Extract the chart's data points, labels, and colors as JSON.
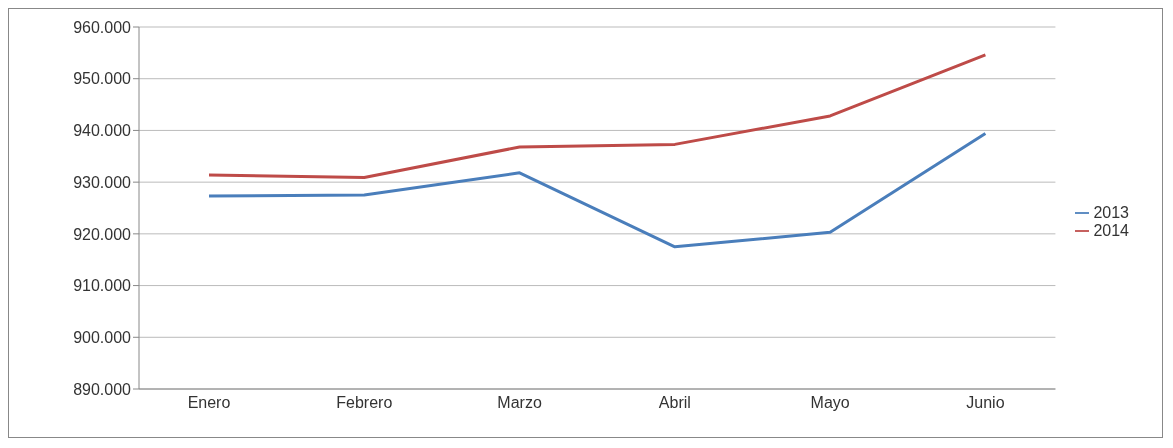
{
  "chart_data": {
    "type": "line",
    "categories": [
      "Enero",
      "Febrero",
      "Marzo",
      "Abril",
      "Mayo",
      "Junio"
    ],
    "series": [
      {
        "name": "2013",
        "color": "#4a7ebb",
        "values": [
          927300,
          927500,
          931800,
          917500,
          920300,
          939400
        ]
      },
      {
        "name": "2014",
        "color": "#be4b48",
        "values": [
          931400,
          930900,
          936800,
          937300,
          942800,
          954600
        ]
      }
    ],
    "ylim": [
      890000,
      960000
    ],
    "yticks": [
      {
        "value": 890000,
        "label": "890.000"
      },
      {
        "value": 900000,
        "label": "900.000"
      },
      {
        "value": 910000,
        "label": "910.000"
      },
      {
        "value": 920000,
        "label": "920.000"
      },
      {
        "value": 930000,
        "label": "930.000"
      },
      {
        "value": 940000,
        "label": "940.000"
      },
      {
        "value": 950000,
        "label": "950.000"
      },
      {
        "value": 960000,
        "label": "960.000"
      }
    ],
    "grid": "y",
    "legend": "right",
    "marker": "none",
    "line_style": "solid"
  }
}
